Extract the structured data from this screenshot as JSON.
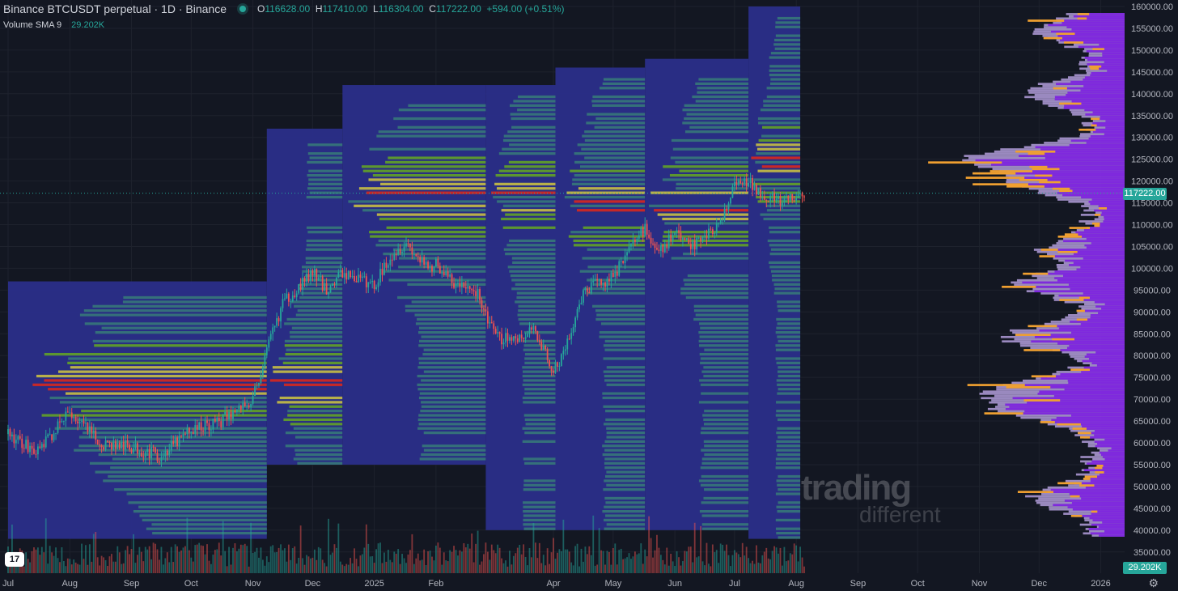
{
  "header": {
    "title": "Binance BTCUSDT perpetual · 1D · Binance",
    "open_label": "O",
    "open": "116628.00",
    "high_label": "H",
    "high": "117410.00",
    "low_label": "L",
    "low": "116304.00",
    "close_label": "C",
    "close": "117222.00",
    "change": "+594.00 (+0.51%)"
  },
  "indicator": {
    "name": "Volume SMA 9",
    "value": "29.202K"
  },
  "chart_data": {
    "type": "candlestick",
    "price_axis": {
      "ticks": [
        "160000.00",
        "155000.00",
        "150000.00",
        "145000.00",
        "140000.00",
        "135000.00",
        "130000.00",
        "125000.00",
        "120000.00",
        "115000.00",
        "110000.00",
        "105000.00",
        "100000.00",
        "95000.00",
        "90000.00",
        "85000.00",
        "80000.00",
        "75000.00",
        "70000.00",
        "65000.00",
        "60000.00",
        "55000.00",
        "50000.00",
        "45000.00",
        "40000.00",
        "35000.00"
      ],
      "current_price": "117222.00",
      "volume_sma": "29.202K",
      "ylim": [
        32500,
        160000
      ]
    },
    "time_axis": {
      "ticks": [
        "Jul",
        "Aug",
        "Sep",
        "Oct",
        "Nov",
        "Dec",
        "2025",
        "Feb",
        "Apr",
        "May",
        "Jun",
        "Jul",
        "Aug",
        "Sep",
        "Oct",
        "Nov",
        "Dec",
        "2026"
      ],
      "tick_positions_idx": [
        0,
        31,
        62,
        92,
        123,
        153,
        184,
        215,
        274,
        304,
        335,
        365,
        396,
        427,
        457,
        488,
        518,
        549
      ]
    },
    "price_path": {
      "dates_idx": [
        0,
        15,
        31,
        46,
        62,
        77,
        92,
        107,
        123,
        130,
        138,
        153,
        160,
        168,
        184,
        192,
        200,
        210,
        215,
        225,
        235,
        245,
        258,
        265,
        274,
        283,
        290,
        304,
        312,
        320,
        328,
        335,
        345,
        350,
        358,
        365,
        372,
        380,
        388,
        396,
        400
      ],
      "close": [
        62000,
        58000,
        67000,
        60000,
        59000,
        57000,
        63000,
        65000,
        70000,
        81000,
        92000,
        99000,
        95000,
        99000,
        96000,
        103000,
        106000,
        100000,
        101000,
        96000,
        95000,
        84000,
        84000,
        86000,
        76000,
        85000,
        95000,
        98000,
        105000,
        109000,
        104000,
        108000,
        105000,
        108000,
        110000,
        119000,
        119500,
        117000,
        115000,
        116000,
        117222
      ]
    },
    "profile_colors": [
      "#2a2e8a",
      "#35707a",
      "#5c9630",
      "#b8b04a",
      "#c62828"
    ],
    "side_profile_colors": [
      "#b39ddb",
      "#7c1fe0",
      "#f0a030"
    ]
  },
  "watermark": {
    "line1": "trading",
    "line2": "different"
  },
  "logo_text": "17"
}
